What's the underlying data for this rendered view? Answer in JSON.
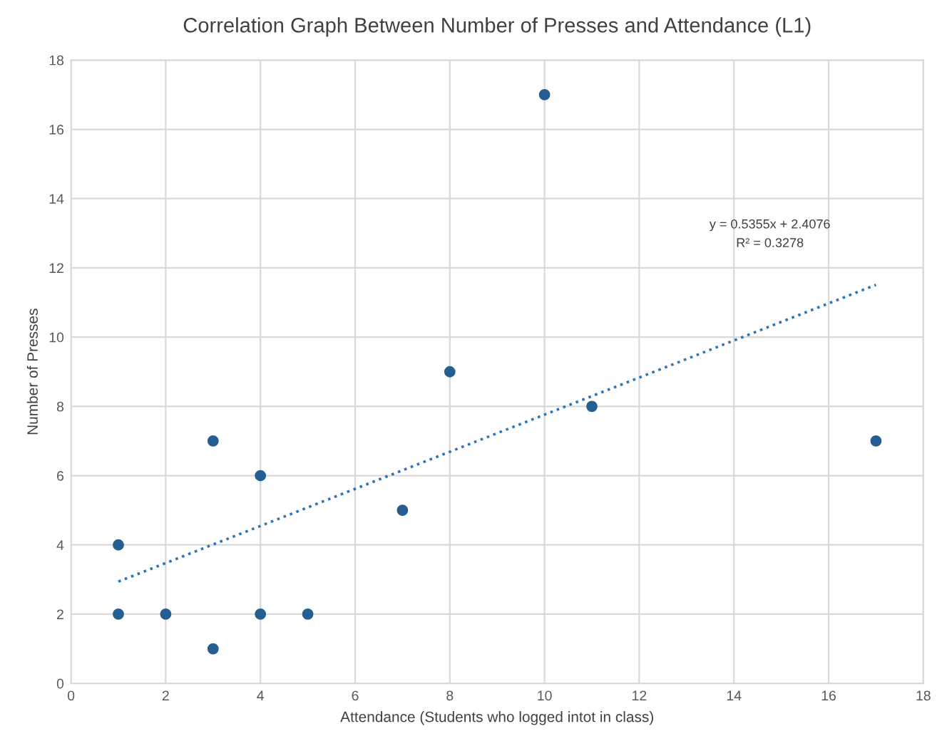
{
  "chart_data": {
    "type": "scatter",
    "title": "Correlation Graph Between Number of Presses and Attendance (L1)",
    "xlabel": "Attendance (Students who logged intot in class)",
    "ylabel": "Number of Presses",
    "series": [
      {
        "color": "#255e91",
        "x": [
          1,
          1,
          2,
          3,
          3,
          4,
          4,
          5,
          7,
          8,
          10,
          11,
          17
        ],
        "values": [
          4,
          2,
          2,
          7,
          1,
          6,
          2,
          2,
          5,
          9,
          17,
          8,
          7
        ],
        "marker": "circle"
      },
      {
        "type": "line",
        "color": "#2e75b6",
        "x": [
          1,
          17
        ],
        "values": [
          2.94,
          11.51
        ],
        "line_style": "dotted",
        "marker": "none"
      }
    ],
    "annotations": [
      "y = 0.5355x + 2.4076",
      "R² = 0.3278"
    ],
    "xlim": [
      0,
      18
    ],
    "ylim": [
      0,
      18
    ],
    "xticks": [
      0,
      2,
      4,
      6,
      8,
      10,
      12,
      14,
      16,
      18
    ],
    "yticks": [
      0,
      2,
      4,
      6,
      8,
      10,
      12,
      14,
      16,
      18
    ],
    "grid": true,
    "legend": false
  }
}
